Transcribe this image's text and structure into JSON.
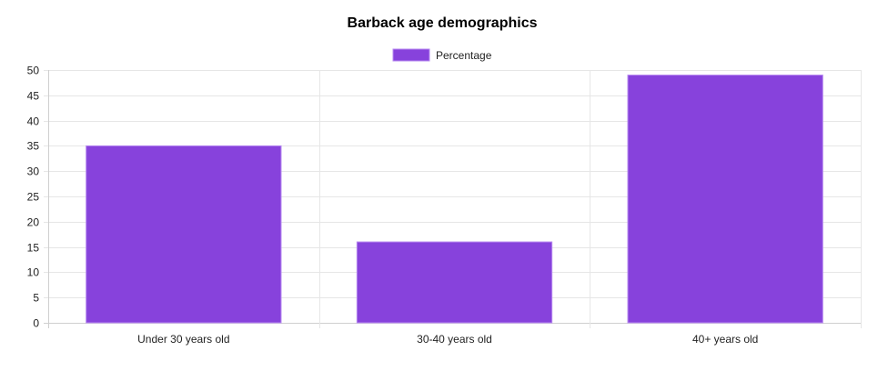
{
  "chart_data": {
    "type": "bar",
    "title": "Barback age demographics",
    "categories": [
      "Under 30 years old",
      "30-40 years old",
      "40+ years old"
    ],
    "series": [
      {
        "name": "Percentage",
        "values": [
          35,
          16,
          49
        ],
        "color": "#8742dc",
        "border_color": "#b78af0"
      }
    ],
    "ylim": [
      0,
      50
    ],
    "yticks": [
      0,
      5,
      10,
      15,
      20,
      25,
      30,
      35,
      40,
      45,
      50
    ],
    "grid": true,
    "legend_position": "top"
  }
}
